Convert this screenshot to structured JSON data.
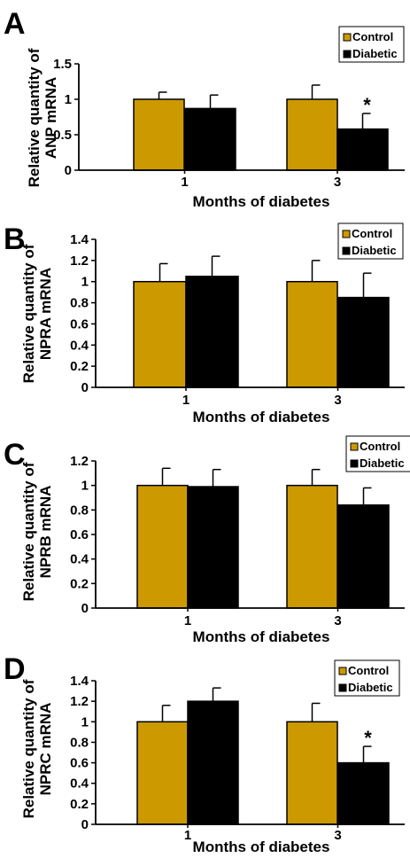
{
  "colors": {
    "control": "#CC9900",
    "diabetic": "#000000"
  },
  "chart_data": [
    {
      "panel": "A",
      "type": "bar",
      "ylabel_lines": [
        "Relative quantity of",
        "ANP mRNA"
      ],
      "xlabel": "Months of diabetes",
      "categories": [
        "1",
        "3"
      ],
      "yticks": [
        "0",
        "0.5",
        "1",
        "1.5"
      ],
      "ylim": [
        0,
        1.5
      ],
      "series": [
        {
          "name": "Control",
          "values": [
            1.0,
            1.0
          ],
          "errors": [
            0.1,
            0.2
          ]
        },
        {
          "name": "Diabetic",
          "values": [
            0.87,
            0.58
          ],
          "errors": [
            0.19,
            0.22
          ]
        }
      ],
      "significance": [
        {
          "category": 1,
          "series": 1,
          "label": "*"
        }
      ],
      "legend": "top-right"
    },
    {
      "panel": "B",
      "type": "bar",
      "ylabel_lines": [
        "Relative quantity of",
        "NPRA mRNA"
      ],
      "xlabel": "Months of diabetes",
      "categories": [
        "1",
        "3"
      ],
      "yticks": [
        "0",
        "0.2",
        "0.4",
        "0.6",
        "0.8",
        "1",
        "1.2",
        "1.4"
      ],
      "ylim": [
        0,
        1.4
      ],
      "series": [
        {
          "name": "Control",
          "values": [
            1.0,
            1.0
          ],
          "errors": [
            0.17,
            0.2
          ]
        },
        {
          "name": "Diabetic",
          "values": [
            1.05,
            0.85
          ],
          "errors": [
            0.19,
            0.23
          ]
        }
      ],
      "significance": [],
      "legend": "top-right"
    },
    {
      "panel": "C",
      "type": "bar",
      "ylabel_lines": [
        "Relative quantity of",
        "NPRB mRNA"
      ],
      "xlabel": "Months of diabetes",
      "categories": [
        "1",
        "3"
      ],
      "yticks": [
        "0",
        "0.2",
        "0.4",
        "0.6",
        "0.8",
        "1",
        "1.2"
      ],
      "ylim": [
        0,
        1.2
      ],
      "series": [
        {
          "name": "Control",
          "values": [
            1.0,
            1.0
          ],
          "errors": [
            0.14,
            0.13
          ]
        },
        {
          "name": "Diabetic",
          "values": [
            0.99,
            0.84
          ],
          "errors": [
            0.14,
            0.14
          ]
        }
      ],
      "significance": [],
      "legend": "top-right"
    },
    {
      "panel": "D",
      "type": "bar",
      "ylabel_lines": [
        "Relative quantity of",
        "NPRC mRNA"
      ],
      "xlabel": "Months of diabetes",
      "categories": [
        "1",
        "3"
      ],
      "yticks": [
        "0",
        "0.2",
        "0.4",
        "0.6",
        "0.8",
        "1",
        "1.2",
        "1.4"
      ],
      "ylim": [
        0,
        1.4
      ],
      "series": [
        {
          "name": "Control",
          "values": [
            1.0,
            1.0
          ],
          "errors": [
            0.16,
            0.18
          ]
        },
        {
          "name": "Diabetic",
          "values": [
            1.2,
            0.6
          ],
          "errors": [
            0.13,
            0.16
          ]
        }
      ],
      "significance": [
        {
          "category": 1,
          "series": 1,
          "label": "*"
        }
      ],
      "legend": "top-right"
    }
  ]
}
